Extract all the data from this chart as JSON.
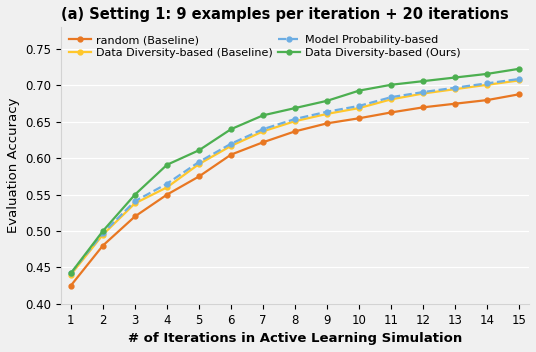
{
  "title": "(a) Setting 1: 9 examples per iteration + 20 iterations",
  "xlabel": "# of Iterations in Active Learning Simulation",
  "ylabel": "Evaluation Accuracy",
  "xlim": [
    0.7,
    15.3
  ],
  "ylim": [
    0.4,
    0.78
  ],
  "yticks": [
    0.4,
    0.45,
    0.5,
    0.55,
    0.6,
    0.65,
    0.7,
    0.75
  ],
  "xticks": [
    1,
    2,
    3,
    4,
    5,
    6,
    7,
    8,
    9,
    10,
    11,
    12,
    13,
    14,
    15
  ],
  "x": [
    1,
    2,
    3,
    4,
    5,
    6,
    7,
    8,
    9,
    10,
    11,
    12,
    13,
    14,
    15
  ],
  "random": [
    0.425,
    0.48,
    0.52,
    0.55,
    0.575,
    0.605,
    0.622,
    0.637,
    0.648,
    0.655,
    0.663,
    0.67,
    0.675,
    0.68,
    0.688
  ],
  "data_diversity_baseline": [
    0.44,
    0.495,
    0.538,
    0.56,
    0.592,
    0.617,
    0.637,
    0.651,
    0.661,
    0.669,
    0.681,
    0.689,
    0.695,
    0.701,
    0.707
  ],
  "model_probability": [
    0.442,
    0.497,
    0.541,
    0.565,
    0.595,
    0.62,
    0.64,
    0.654,
    0.664,
    0.672,
    0.684,
    0.691,
    0.697,
    0.703,
    0.709
  ],
  "data_diversity_ours": [
    0.442,
    0.5,
    0.55,
    0.591,
    0.611,
    0.64,
    0.659,
    0.669,
    0.679,
    0.693,
    0.701,
    0.706,
    0.711,
    0.716,
    0.723
  ],
  "color_random": "#E87722",
  "color_data_diversity_baseline": "#FFC72C",
  "color_model_probability": "#6CADE3",
  "color_data_diversity_ours": "#4CAF50",
  "legend_labels": [
    "random (Baseline)",
    "Data Diversity-based (Baseline)",
    "Model Probability-based",
    "Data Diversity-based (Ours)"
  ],
  "title_fontsize": 10.5,
  "label_fontsize": 9.5,
  "tick_fontsize": 8.5,
  "legend_fontsize": 8.0,
  "bg_color": "#f0f0f0"
}
